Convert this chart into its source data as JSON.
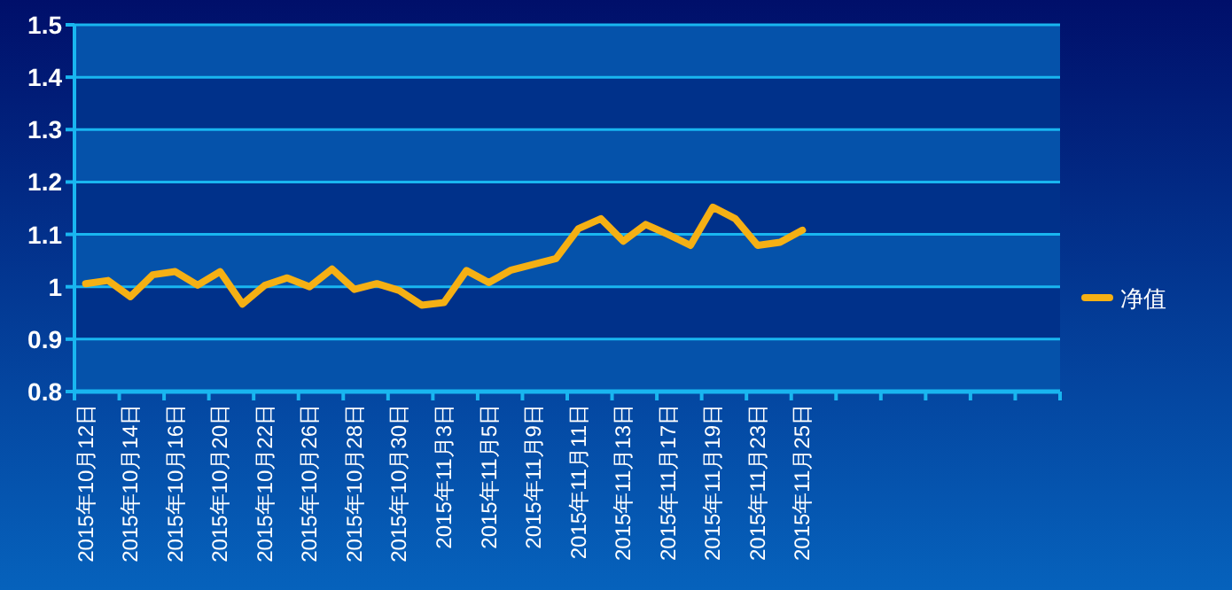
{
  "chart_data": {
    "type": "line",
    "categories": [
      "2015年10月12日",
      null,
      "2015年10月14日",
      null,
      "2015年10月16日",
      null,
      "2015年10月20日",
      null,
      "2015年10月22日",
      null,
      "2015年10月26日",
      null,
      "2015年10月28日",
      null,
      "2015年10月30日",
      null,
      "2015年11月3日",
      null,
      "2015年11月5日",
      null,
      "2015年11月9日",
      null,
      "2015年11月11日",
      null,
      "2015年11月13日",
      null,
      "2015年11月17日",
      null,
      "2015年11月19日",
      null,
      "2015年11月23日",
      null,
      "2015年11月25日",
      null,
      null,
      null,
      null,
      null,
      null,
      null,
      null,
      null,
      null,
      null
    ],
    "series": [
      {
        "name": "净值",
        "color": "#f5b014",
        "values": [
          1.006,
          1.012,
          0.981,
          1.023,
          1.029,
          1.003,
          1.029,
          0.967,
          1.003,
          1.017,
          1.0,
          1.034,
          0.995,
          1.006,
          0.993,
          0.965,
          0.97,
          1.031,
          1.008,
          1.032,
          1.043,
          1.054,
          1.111,
          1.13,
          1.087,
          1.119,
          1.1,
          1.079,
          1.152,
          1.13,
          1.079,
          1.085,
          1.108,
          null,
          null,
          null,
          null,
          null,
          null,
          null,
          null,
          null,
          null,
          null
        ]
      }
    ],
    "bands": [
      {
        "axis": "y",
        "from": 0.8,
        "to": 0.9,
        "color": "#0552aa"
      },
      {
        "axis": "y",
        "from": 0.9,
        "to": 1,
        "color": "#00318a"
      },
      {
        "axis": "y",
        "from": 1,
        "to": 1.1,
        "color": "#0552aa"
      },
      {
        "axis": "y",
        "from": 1.1,
        "to": 1.2,
        "color": "#00318a"
      },
      {
        "axis": "y",
        "from": 1.2,
        "to": 1.3,
        "color": "#0552aa"
      },
      {
        "axis": "y",
        "from": 1.3,
        "to": 1.4,
        "color": "#00318a"
      },
      {
        "axis": "y",
        "from": 1.4,
        "to": 1.5,
        "color": "#0552aa"
      }
    ],
    "ylim": [
      0.8,
      1.5
    ],
    "yticks": [
      0.8,
      0.9,
      1,
      1.1,
      1.2,
      1.3,
      1.4,
      1.5
    ],
    "grid": "y",
    "legend": "right"
  }
}
